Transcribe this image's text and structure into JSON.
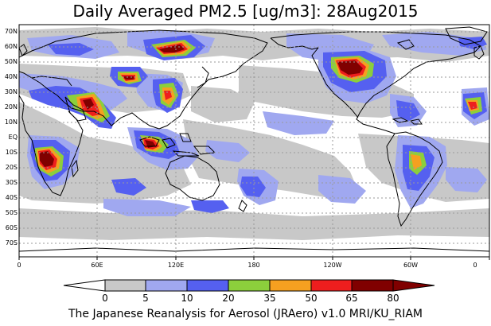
{
  "title": "Daily Averaged PM2.5 [ug/m3]: 28Aug2015",
  "lat_labels": [
    "70N",
    "60N",
    "50N",
    "40N",
    "30N",
    "20N",
    "10N",
    "EQ",
    "10S",
    "20S",
    "30S",
    "40S",
    "50S",
    "60S",
    "70S"
  ],
  "lon_labels": [
    "0",
    "60E",
    "120E",
    "180",
    "120W",
    "60W",
    "0"
  ],
  "colorbar": {
    "labels": [
      "0",
      "5",
      "10",
      "20",
      "35",
      "50",
      "65",
      "80"
    ],
    "colors": [
      "#ffffff",
      "#c8c8c8",
      "#a0a8f0",
      "#5560f0",
      "#8ccf3c",
      "#f5a020",
      "#ee1e1e",
      "#800000"
    ]
  },
  "palette": {
    "gray": "#c8c8c8",
    "light_blue": "#a0a8f0",
    "blue": "#5560f0",
    "green": "#8ccf3c",
    "orange": "#f5a020",
    "red": "#ee1e1e",
    "maroon": "#800000",
    "coast": "#000000",
    "grid": "#9a9a9a"
  },
  "footer": "The Japanese Reanalysis for Aerosol (JRAero) v1.0 MRI/KU_RIAM"
}
